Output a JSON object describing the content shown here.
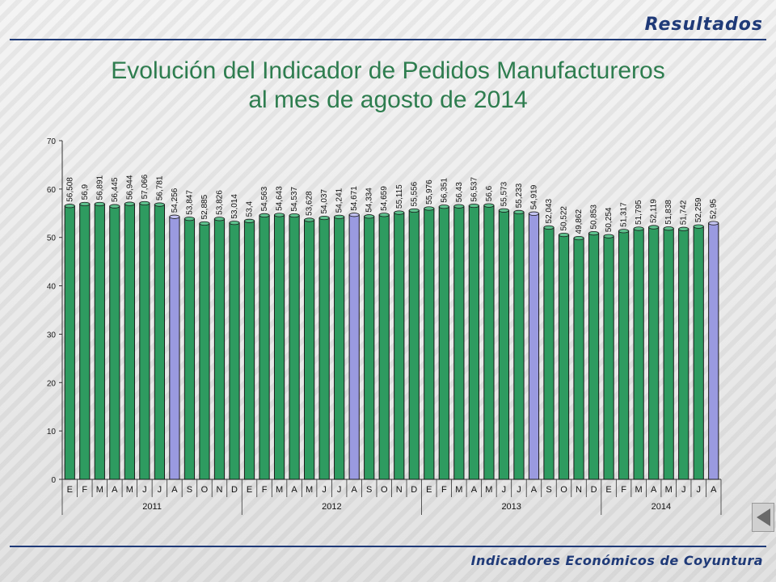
{
  "header": {
    "section_label": "Resultados"
  },
  "title": {
    "line1": "Evolución del Indicador de Pedidos Manufactureros",
    "line2": "al mes de agosto de 2014"
  },
  "footer": {
    "label": "Indicadores Económicos de Coyuntura"
  },
  "nav": {
    "back_icon": "left-triangle-icon"
  },
  "colors": {
    "green_bar": "#2e9b60",
    "blue_bar": "#9a9ae0",
    "title": "#2e7d4f",
    "accent": "#1f3a78"
  },
  "chart_data": {
    "type": "bar",
    "ylim": [
      0,
      70
    ],
    "yticks": [
      0,
      10,
      20,
      30,
      40,
      50,
      60,
      70
    ],
    "grid": false,
    "categories": [
      "E",
      "F",
      "M",
      "A",
      "M",
      "J",
      "J",
      "A",
      "S",
      "O",
      "N",
      "D",
      "E",
      "F",
      "M",
      "A",
      "M",
      "J",
      "J",
      "A",
      "S",
      "O",
      "N",
      "D",
      "E",
      "F",
      "M",
      "A",
      "M",
      "J",
      "J",
      "A",
      "S",
      "O",
      "N",
      "D",
      "E",
      "F",
      "M",
      "A",
      "M",
      "J",
      "J",
      "A"
    ],
    "labels": [
      "56,508",
      "56,9",
      "56,891",
      "56,445",
      "56,944",
      "57,066",
      "56,781",
      "54,256",
      "53,847",
      "52,885",
      "53,826",
      "53,014",
      "53,4",
      "54,563",
      "54,643",
      "54,537",
      "53,628",
      "54,037",
      "54,241",
      "54,671",
      "54,334",
      "54,659",
      "55,115",
      "55,556",
      "55,976",
      "56,351",
      "56,43",
      "56,537",
      "56,6",
      "55,573",
      "55,233",
      "54,919",
      "52,043",
      "50,522",
      "49,862",
      "50,853",
      "50,254",
      "51,317",
      "51,795",
      "52,119",
      "51,838",
      "51,742",
      "52,259",
      "52,95"
    ],
    "values": [
      56.508,
      56.9,
      56.891,
      56.445,
      56.944,
      57.066,
      56.781,
      54.256,
      53.847,
      52.885,
      53.826,
      53.014,
      53.4,
      54.563,
      54.643,
      54.537,
      53.628,
      54.037,
      54.241,
      54.671,
      54.334,
      54.659,
      55.115,
      55.556,
      55.976,
      56.351,
      56.43,
      56.537,
      56.6,
      55.573,
      55.233,
      54.919,
      52.043,
      50.522,
      49.862,
      50.853,
      50.254,
      51.317,
      51.795,
      52.119,
      51.838,
      51.742,
      52.259,
      52.95
    ],
    "highlight_indices": [
      7,
      19,
      31,
      43
    ],
    "years": [
      {
        "label": "2011",
        "count": 12
      },
      {
        "label": "2012",
        "count": 12
      },
      {
        "label": "2013",
        "count": 12
      },
      {
        "label": "2014",
        "count": 8
      }
    ]
  }
}
